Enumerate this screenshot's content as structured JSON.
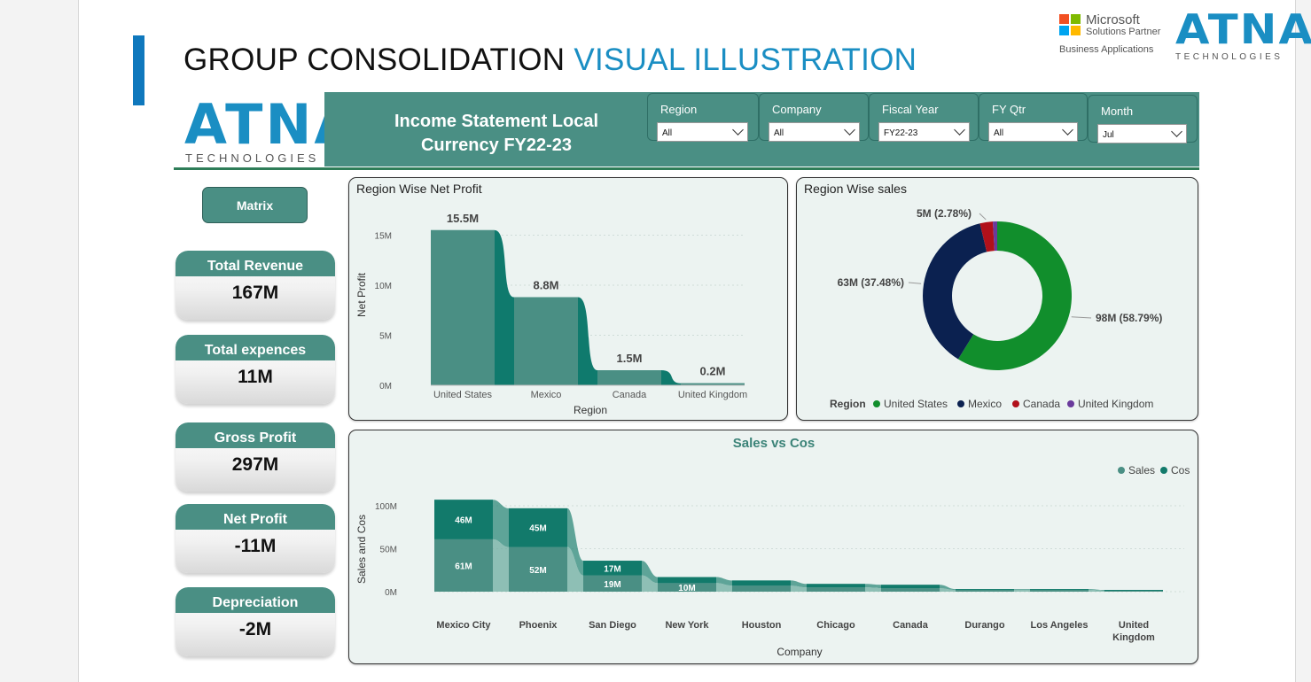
{
  "slide": {
    "title_main": "GROUP CONSOLIDATION",
    "title_highlight": "VISUAL ILLUSTRATION",
    "partner_name": "Microsoft",
    "partner_sub": "Solutions Partner",
    "partner_area": "Business Applications",
    "brand_word": "ATNA",
    "brand_tech": "TECHNOLOGIES"
  },
  "colors": {
    "teal": "#4a8f84",
    "teal_dark": "#0f7a6d",
    "us": "#118e2c",
    "mexico": "#0b2150",
    "canada": "#b1101a",
    "uk": "#6a3a9c"
  },
  "header": {
    "line1": "Income Statement   Local",
    "line2": "Currency   FY22-23",
    "slicers": [
      {
        "label": "Region",
        "value": "All"
      },
      {
        "label": "Company",
        "value": "All"
      },
      {
        "label": "Fiscal Year",
        "value": "FY22-23"
      },
      {
        "label": "FY Qtr",
        "value": "All"
      },
      {
        "label": "Month",
        "value": "Jul"
      }
    ]
  },
  "matrix_button": "Matrix",
  "kpis": [
    {
      "label": "Total Revenue",
      "value": "167M"
    },
    {
      "label": "Total expences",
      "value": "11M"
    },
    {
      "label": "Gross Profit",
      "value": "297M"
    },
    {
      "label": "Net Profit",
      "value": "-11M"
    },
    {
      "label": "Depreciation",
      "value": "-2M"
    }
  ],
  "chart_data": [
    {
      "type": "bar",
      "title": "Region Wise Net Profit",
      "xlabel": "Region",
      "ylabel": "Net Profit",
      "categories": [
        "United States",
        "Mexico",
        "Canada",
        "United Kingdom"
      ],
      "values": [
        15.5,
        8.8,
        1.5,
        0.2
      ],
      "data_labels": [
        "15.5M",
        "8.8M",
        "1.5M",
        "0.2M"
      ],
      "yticks": [
        "0M",
        "5M",
        "10M",
        "15M"
      ],
      "ylim": [
        0,
        17
      ]
    },
    {
      "type": "pie",
      "title": "Region Wise sales",
      "legend_title": "Region",
      "legend_position": "bottom",
      "categories": [
        "United States",
        "Mexico",
        "Canada",
        "United Kingdom"
      ],
      "values": [
        58.79,
        37.48,
        2.78,
        0.95
      ],
      "data_labels": [
        "98M (58.79%)",
        "63M (37.48%)",
        "5M (2.78%)",
        ""
      ]
    },
    {
      "type": "bar",
      "title": "Sales vs Cos",
      "xlabel": "Company",
      "ylabel": "Sales and Cos",
      "legend_position": "top-right",
      "categories": [
        "Mexico City",
        "Phoenix",
        "San Diego",
        "New York",
        "Houston",
        "Chicago",
        "Canada",
        "Durango",
        "Los Angeles",
        "United Kingdom"
      ],
      "category_lines": [
        [
          "Mexico City"
        ],
        [
          "Phoenix"
        ],
        [
          "San Diego"
        ],
        [
          "New York"
        ],
        [
          "Houston"
        ],
        [
          "Chicago"
        ],
        [
          "Canada"
        ],
        [
          "Durango"
        ],
        [
          "Los Angeles"
        ],
        [
          "United",
          "Kingdom"
        ]
      ],
      "series": [
        {
          "name": "Sales",
          "values": [
            61,
            52,
            19,
            10,
            7,
            5,
            4,
            2,
            2,
            1
          ],
          "labels": [
            "61M",
            "52M",
            "19M",
            "10M",
            "",
            "",
            "",
            "",
            "",
            ""
          ]
        },
        {
          "name": "Cos",
          "values": [
            46,
            45,
            17,
            7,
            6,
            4,
            4,
            1,
            1,
            1
          ],
          "labels": [
            "46M",
            "45M",
            "17M",
            "",
            "",
            "",
            "",
            "",
            "",
            ""
          ]
        }
      ],
      "yticks": [
        "0M",
        "50M",
        "100M"
      ],
      "ylim": [
        0,
        110
      ]
    }
  ]
}
